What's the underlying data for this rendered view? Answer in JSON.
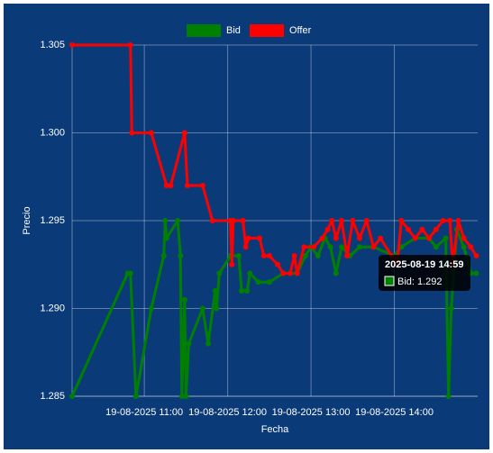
{
  "chart_data": {
    "type": "line",
    "x_label": "Fecha",
    "y_label": "Precio",
    "xlim": [
      "2025-08-19 10:08",
      "2025-08-19 15:00"
    ],
    "xticks": [
      {
        "value": "2025-08-19 11:00",
        "label": "19-08-2025 11:00"
      },
      {
        "value": "2025-08-19 12:00",
        "label": "19-08-2025 12:00"
      },
      {
        "value": "2025-08-19 13:00",
        "label": "19-08-2025 13:00"
      },
      {
        "value": "2025-08-19 14:00",
        "label": "19-08-2025 14:00"
      }
    ],
    "ylim": [
      1.285,
      1.305
    ],
    "yticks": [
      1.285,
      {
        "value": 1.29,
        "label": "1.290"
      },
      1.295,
      {
        "value": 1.3,
        "label": "1.300"
      },
      1.305
    ],
    "grid": true,
    "legend": "top",
    "series": [
      {
        "name": "Bid",
        "color": "#008000",
        "x": [
          "2025-08-19 10:08",
          "2025-08-19 10:48",
          "2025-08-19 10:50",
          "2025-08-19 10:54",
          "2025-08-19 11:05",
          "2025-08-19 11:14",
          "2025-08-19 11:15",
          "2025-08-19 11:16",
          "2025-08-19 11:24",
          "2025-08-19 11:26",
          "2025-08-19 11:27",
          "2025-08-19 11:29",
          "2025-08-19 11:30",
          "2025-08-19 11:32",
          "2025-08-19 11:42",
          "2025-08-19 11:46",
          "2025-08-19 11:51",
          "2025-08-19 11:52",
          "2025-08-19 11:54",
          "2025-08-19 12:02",
          "2025-08-19 12:08",
          "2025-08-19 12:10",
          "2025-08-19 12:14",
          "2025-08-19 12:16",
          "2025-08-19 12:22",
          "2025-08-19 12:30",
          "2025-08-19 12:40",
          "2025-08-19 12:50",
          "2025-08-19 12:56",
          "2025-08-19 13:00",
          "2025-08-19 13:05",
          "2025-08-19 13:10",
          "2025-08-19 13:14",
          "2025-08-19 13:18",
          "2025-08-19 13:22",
          "2025-08-19 13:28",
          "2025-08-19 13:35",
          "2025-08-19 13:45",
          "2025-08-19 14:00",
          "2025-08-19 14:05",
          "2025-08-19 14:15",
          "2025-08-19 14:25",
          "2025-08-19 14:30",
          "2025-08-19 14:37",
          "2025-08-19 14:39",
          "2025-08-19 14:41",
          "2025-08-19 14:45",
          "2025-08-19 14:50",
          "2025-08-19 14:55",
          "2025-08-19 14:59"
        ],
        "values": [
          1.285,
          1.292,
          1.292,
          1.285,
          1.29,
          1.293,
          1.295,
          1.294,
          1.295,
          1.293,
          1.285,
          1.2905,
          1.285,
          1.288,
          1.29,
          1.288,
          1.291,
          1.29,
          1.292,
          1.293,
          1.293,
          1.291,
          1.291,
          1.292,
          1.2915,
          1.2915,
          1.292,
          1.292,
          1.293,
          1.2935,
          1.293,
          1.294,
          1.2935,
          1.292,
          1.2935,
          1.293,
          1.2935,
          1.2935,
          1.293,
          1.2935,
          1.294,
          1.294,
          1.2935,
          1.294,
          1.285,
          1.29,
          1.2945,
          1.2935,
          1.292,
          1.292
        ]
      },
      {
        "name": "Offer",
        "color": "#ff0000",
        "x": [
          "2025-08-19 10:08",
          "2025-08-19 10:50",
          "2025-08-19 10:51",
          "2025-08-19 11:05",
          "2025-08-19 11:16",
          "2025-08-19 11:19",
          "2025-08-19 11:29",
          "2025-08-19 11:31",
          "2025-08-19 11:42",
          "2025-08-19 11:49",
          "2025-08-19 12:02",
          "2025-08-19 12:03",
          "2025-08-19 12:04",
          "2025-08-19 12:11",
          "2025-08-19 12:13",
          "2025-08-19 12:15",
          "2025-08-19 12:23",
          "2025-08-19 12:26",
          "2025-08-19 12:30",
          "2025-08-19 12:36",
          "2025-08-19 12:40",
          "2025-08-19 12:45",
          "2025-08-19 12:48",
          "2025-08-19 12:50",
          "2025-08-19 12:55",
          "2025-08-19 13:02",
          "2025-08-19 13:08",
          "2025-08-19 13:12",
          "2025-08-19 13:15",
          "2025-08-19 13:18",
          "2025-08-19 13:22",
          "2025-08-19 13:26",
          "2025-08-19 13:30",
          "2025-08-19 13:35",
          "2025-08-19 13:40",
          "2025-08-19 13:45",
          "2025-08-19 13:50",
          "2025-08-19 13:58",
          "2025-08-19 14:02",
          "2025-08-19 14:05",
          "2025-08-19 14:10",
          "2025-08-19 14:15",
          "2025-08-19 14:20",
          "2025-08-19 14:25",
          "2025-08-19 14:30",
          "2025-08-19 14:35",
          "2025-08-19 14:40",
          "2025-08-19 14:42",
          "2025-08-19 14:46",
          "2025-08-19 14:50",
          "2025-08-19 14:55",
          "2025-08-19 14:59"
        ],
        "values": [
          1.305,
          1.305,
          1.3,
          1.3,
          1.297,
          1.297,
          1.3,
          1.297,
          1.297,
          1.295,
          1.295,
          1.2925,
          1.295,
          1.295,
          1.2935,
          1.294,
          1.294,
          1.293,
          1.293,
          1.2925,
          1.292,
          1.292,
          1.293,
          1.292,
          1.2935,
          1.2935,
          1.294,
          1.2945,
          1.295,
          1.294,
          1.295,
          1.293,
          1.295,
          1.294,
          1.295,
          1.2935,
          1.294,
          1.293,
          1.2925,
          1.295,
          1.2945,
          1.294,
          1.2945,
          1.294,
          1.2945,
          1.295,
          1.295,
          1.2925,
          1.295,
          1.294,
          1.2935,
          1.293
        ]
      }
    ],
    "tooltip": {
      "title": "2025-08-19 14:59",
      "label": "Bid: 1.292"
    }
  }
}
